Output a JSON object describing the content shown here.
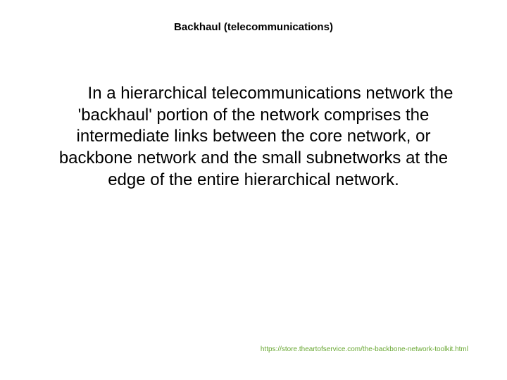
{
  "slide": {
    "title": "Backhaul (telecommunications)",
    "body": "In a hierarchical telecommunications network the 'backhaul' portion of the network comprises the intermediate links between the core network, or backbone network and the small subnetworks at the edge of the entire hierarchical network.",
    "footer_url": "https://store.theartofservice.com/the-backbone-network-toolkit.html"
  },
  "style": {
    "background_color": "#ffffff",
    "title_color": "#000000",
    "title_fontsize": 15,
    "body_color": "#000000",
    "body_fontsize": 24,
    "footer_color": "#69a833",
    "footer_fontsize": 10,
    "font_family": "Arial"
  }
}
